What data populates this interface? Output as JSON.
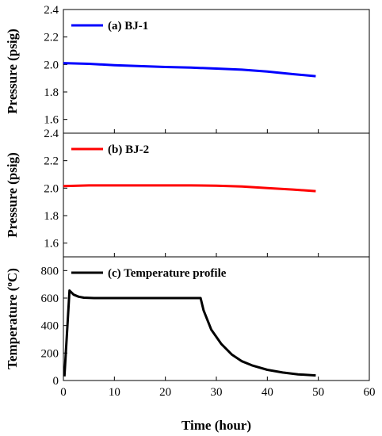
{
  "chart_data": [
    {
      "type": "line",
      "panel": "a",
      "ylabel": "Pressure (psig)",
      "xlim": [
        0,
        60
      ],
      "ylim": [
        1.5,
        2.4
      ],
      "yticks": [
        "1.6",
        "1.8",
        "2.0",
        "2.2",
        "2.4"
      ],
      "grid": false,
      "legend_position": "top-left",
      "series": [
        {
          "name": "(a) BJ-1",
          "color": "#0000ff",
          "x": [
            0,
            5,
            10,
            15,
            20,
            25,
            30,
            35,
            40,
            45,
            49.5
          ],
          "y": [
            2.01,
            2.005,
            1.995,
            1.988,
            1.982,
            1.977,
            1.97,
            1.962,
            1.948,
            1.93,
            1.915
          ]
        }
      ]
    },
    {
      "type": "line",
      "panel": "b",
      "ylabel": "Pressure (psig)",
      "xlim": [
        0,
        60
      ],
      "ylim": [
        1.5,
        2.4
      ],
      "yticks": [
        "1.6",
        "1.8",
        "2.0",
        "2.2",
        "2.4"
      ],
      "grid": false,
      "legend_position": "top-left",
      "series": [
        {
          "name": "(b) BJ-2",
          "color": "#ff0000",
          "x": [
            0,
            5,
            10,
            15,
            20,
            25,
            30,
            35,
            40,
            45,
            49.5
          ],
          "y": [
            2.015,
            2.02,
            2.02,
            2.02,
            2.02,
            2.02,
            2.018,
            2.012,
            2.0,
            1.99,
            1.978
          ]
        }
      ]
    },
    {
      "type": "line",
      "panel": "c",
      "ylabel": "Temperature (°C)",
      "xlabel": "Time (hour)",
      "xlim": [
        0,
        60
      ],
      "ylim": [
        0,
        900
      ],
      "xticks": [
        "0",
        "10",
        "20",
        "30",
        "40",
        "50",
        "60"
      ],
      "yticks": [
        "0",
        "200",
        "400",
        "600",
        "800"
      ],
      "grid": false,
      "legend_position": "top-left",
      "series": [
        {
          "name": "(c) Temperature profile",
          "color": "#000000",
          "x": [
            0.2,
            1.2,
            2,
            3,
            4,
            6,
            10,
            20,
            26.9,
            27.5,
            29,
            31,
            33,
            35,
            37,
            40,
            43,
            46,
            49.5
          ],
          "y": [
            30,
            655,
            625,
            610,
            603,
            600,
            600,
            600,
            600,
            510,
            370,
            265,
            190,
            140,
            110,
            78,
            58,
            45,
            37
          ]
        }
      ]
    }
  ],
  "axis_title_bottom": "Time (hour)",
  "panel_ylabels": [
    "Pressure (psig)",
    "Pressure (psig)",
    "Temperature (°C)"
  ],
  "shared_xticks": [
    "0",
    "10",
    "20",
    "30",
    "40",
    "50",
    "60"
  ]
}
